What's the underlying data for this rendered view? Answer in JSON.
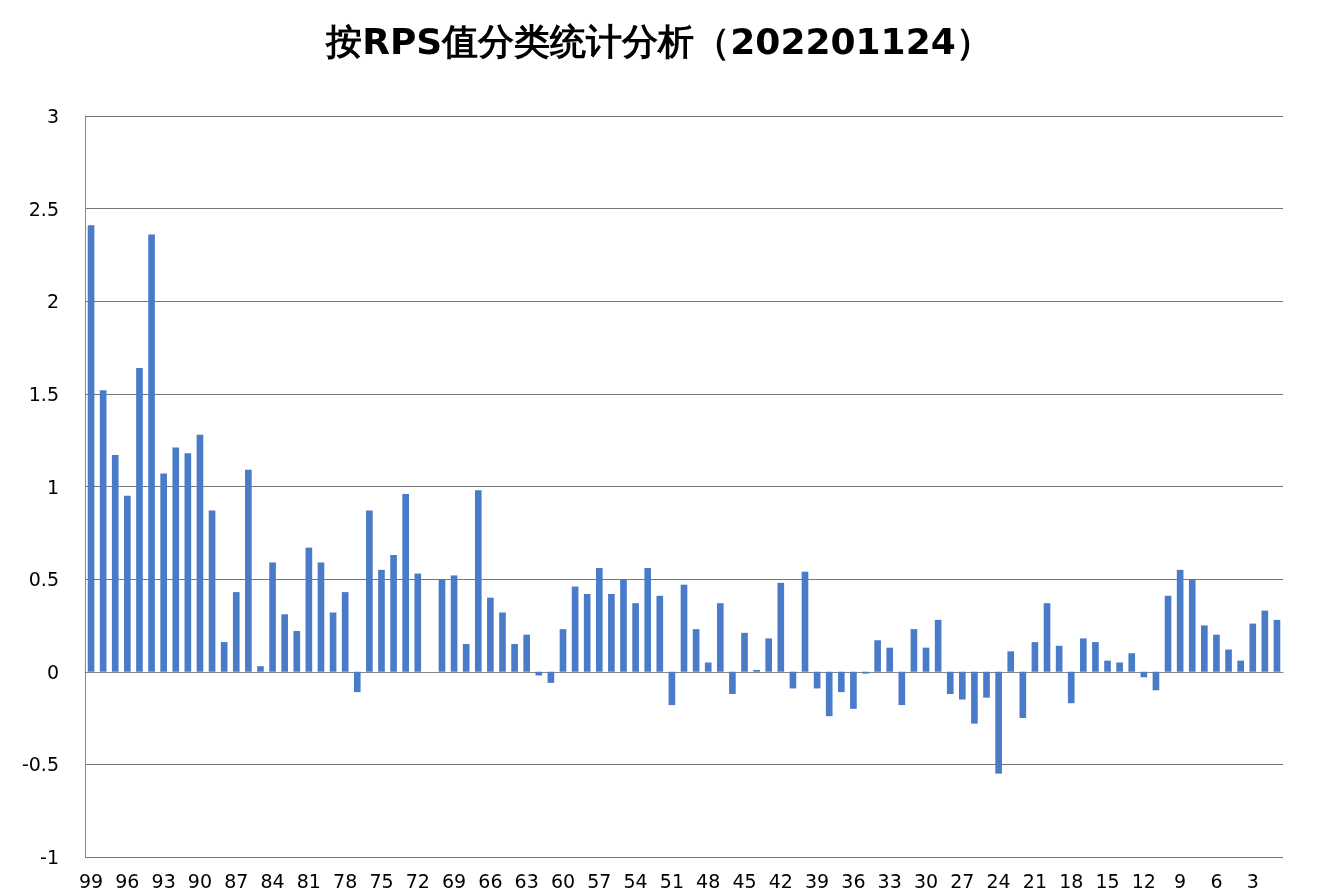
{
  "chart_data": {
    "type": "bar",
    "title": "按RPS值分类统计分析（202201124）",
    "categories": [
      "99",
      null,
      null,
      "96",
      null,
      null,
      "93",
      null,
      null,
      "90",
      null,
      null,
      "87",
      null,
      null,
      "84",
      null,
      null,
      "81",
      null,
      null,
      "78",
      null,
      null,
      "75",
      null,
      null,
      "72",
      null,
      null,
      "69",
      null,
      null,
      "66",
      null,
      null,
      "63",
      null,
      null,
      "60",
      null,
      null,
      "57",
      null,
      null,
      "54",
      null,
      null,
      "51",
      null,
      null,
      "48",
      null,
      null,
      "45",
      null,
      null,
      "42",
      null,
      null,
      "39",
      null,
      null,
      "36",
      null,
      null,
      "33",
      null,
      null,
      "30",
      null,
      null,
      "27",
      null,
      null,
      "24",
      null,
      null,
      "21",
      null,
      null,
      "18",
      null,
      null,
      "15",
      null,
      null,
      "12",
      null,
      null,
      "9",
      null,
      null,
      "6",
      null,
      null,
      "3",
      null,
      null
    ],
    "values": [
      2.41,
      1.52,
      1.17,
      0.95,
      1.64,
      2.36,
      1.07,
      1.21,
      1.18,
      1.28,
      0.87,
      0.16,
      0.43,
      1.09,
      0.03,
      0.59,
      0.31,
      0.22,
      0.67,
      0.59,
      0.32,
      0.43,
      -0.11,
      0.87,
      0.55,
      0.63,
      0.96,
      0.53,
      0,
      0.5,
      0.52,
      0.15,
      0.98,
      0.4,
      0.32,
      0.15,
      0.2,
      -0.02,
      -0.06,
      0.23,
      0.46,
      0.42,
      0.56,
      0.42,
      0.5,
      0.37,
      0.56,
      0.41,
      -0.18,
      0.47,
      0.23,
      0.05,
      0.37,
      -0.12,
      0.21,
      0.01,
      0.18,
      0.48,
      -0.09,
      0.54,
      -0.09,
      -0.24,
      -0.11,
      -0.2,
      -0.01,
      0.17,
      0.13,
      -0.18,
      0.23,
      0.13,
      0.28,
      -0.12,
      -0.15,
      -0.28,
      -0.14,
      -0.55,
      0.11,
      -0.25,
      0.16,
      0.37,
      0.14,
      -0.17,
      0.18,
      0.16,
      0.06,
      0.05,
      0.1,
      -0.03,
      -0.1,
      0.41,
      0.55,
      0.5,
      0.25,
      0.2,
      0.12,
      0.06,
      0.26,
      0.33,
      0.28
    ],
    "color": "#4a7bc8",
    "ylim": [
      -1,
      3
    ],
    "yticks": [
      -1,
      -0.5,
      0,
      0.5,
      1,
      1.5,
      2,
      2.5,
      3
    ],
    "grid": "y"
  }
}
